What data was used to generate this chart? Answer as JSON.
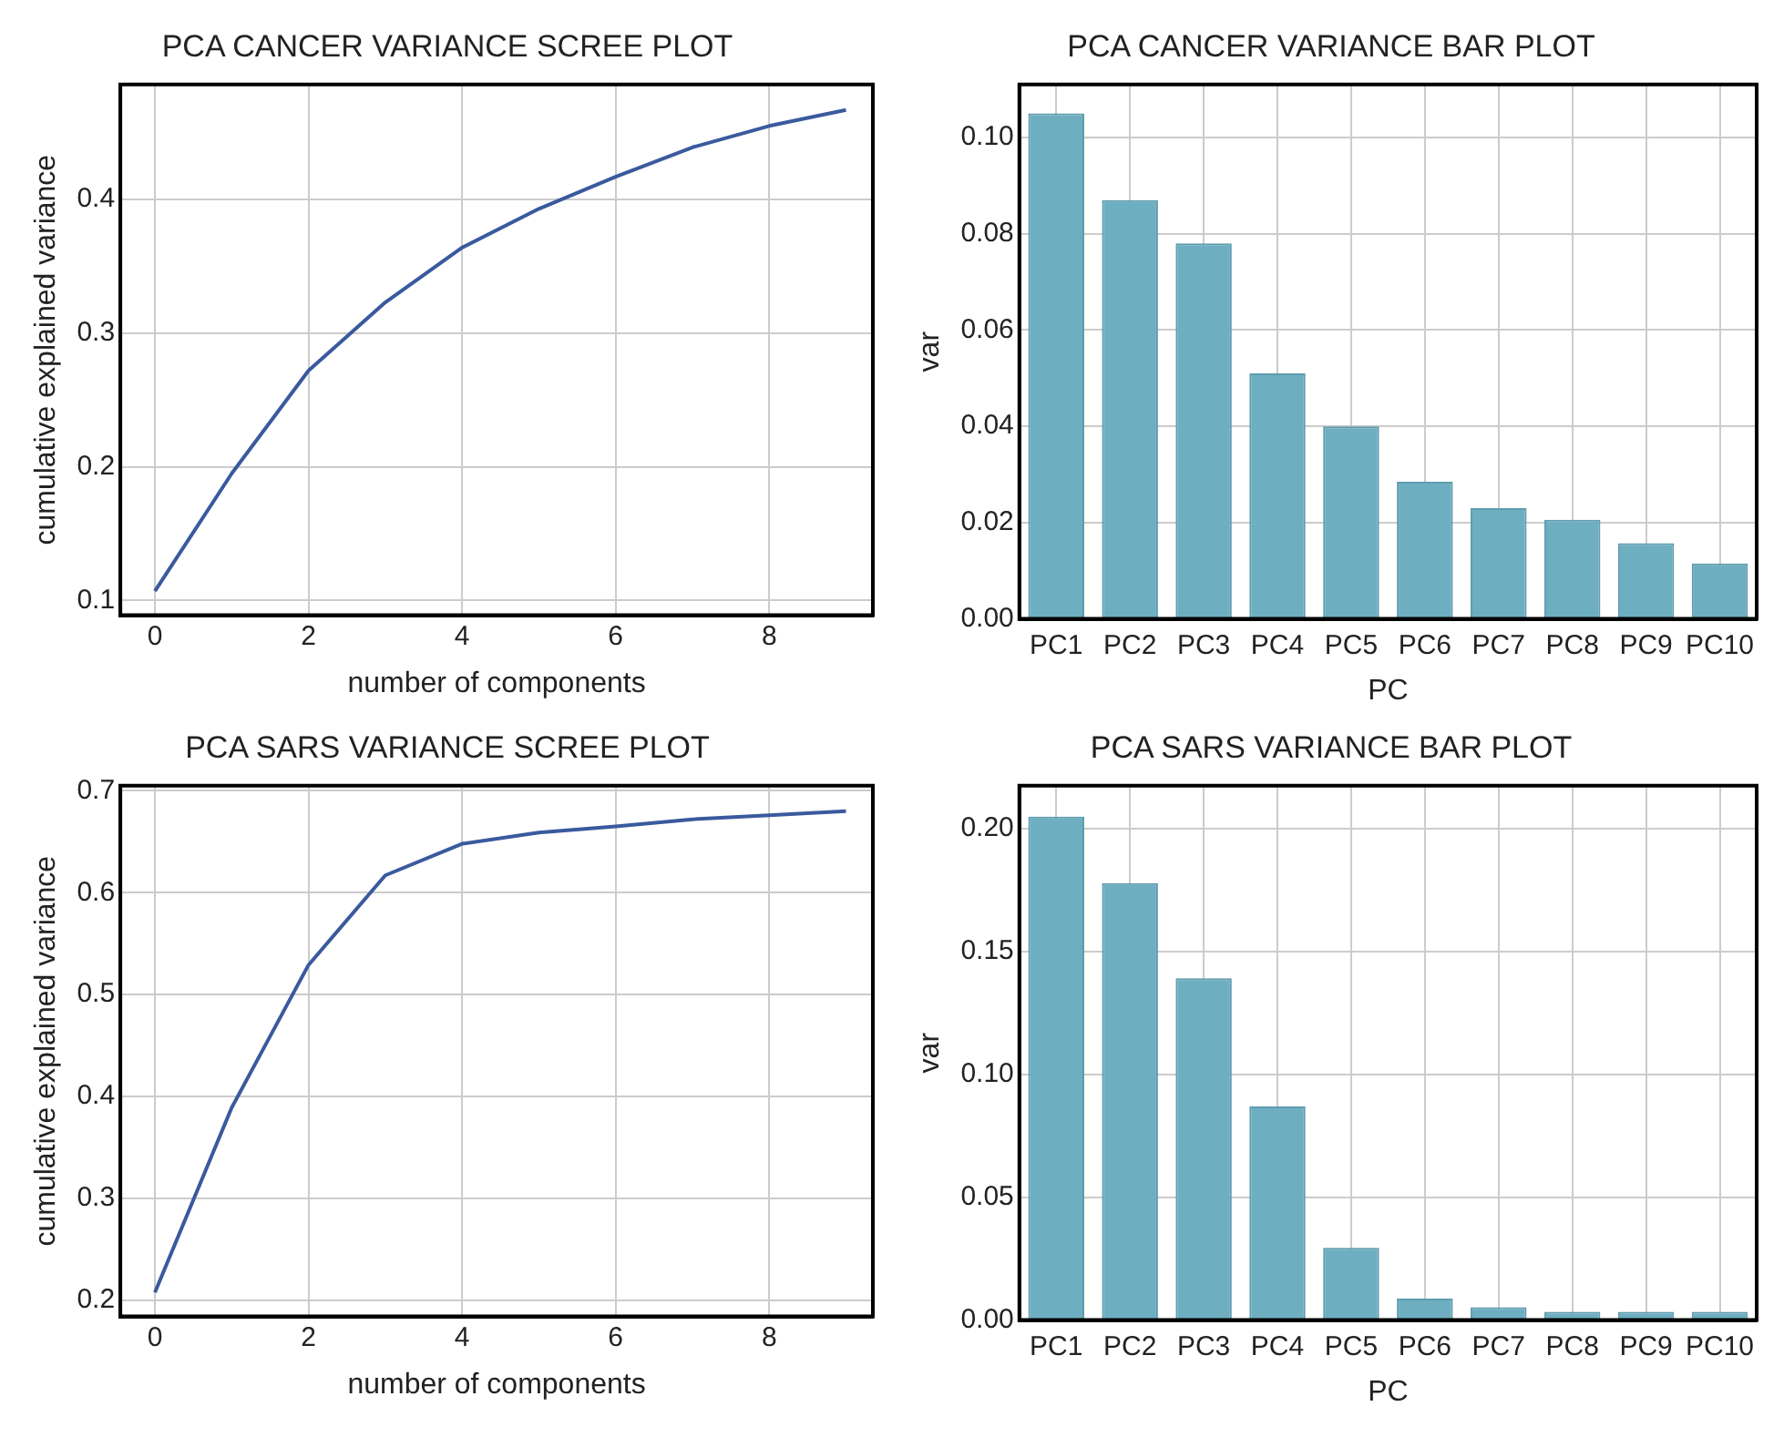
{
  "chart_data": [
    {
      "type": "line",
      "title": "PCA CANCER VARIANCE SCREE PLOT",
      "xlabel": "number of components",
      "ylabel": "cumulative explained variance",
      "x": [
        0,
        1,
        2,
        3,
        4,
        5,
        6,
        7,
        8,
        9
      ],
      "values": [
        0.107,
        0.195,
        0.272,
        0.323,
        0.364,
        0.393,
        0.417,
        0.439,
        0.455,
        0.467
      ],
      "color": "#3a5a9e",
      "xlim": [
        -0.45,
        9.35
      ],
      "ylim": [
        0.089,
        0.486
      ],
      "xticks": [
        0,
        2,
        4,
        6,
        8
      ],
      "yticks": [
        0.1,
        0.2,
        0.3,
        0.4
      ],
      "grid": true,
      "marker": "none",
      "line_style": "solid"
    },
    {
      "type": "bar",
      "title": "PCA CANCER VARIANCE BAR PLOT",
      "xlabel": "PC",
      "ylabel": "var",
      "categories": [
        "PC1",
        "PC2",
        "PC3",
        "PC4",
        "PC5",
        "PC6",
        "PC7",
        "PC8",
        "PC9",
        "PC10"
      ],
      "values": [
        0.105,
        0.087,
        0.078,
        0.051,
        0.04,
        0.0285,
        0.023,
        0.0206,
        0.0157,
        0.0115
      ],
      "color": "#6eaec1",
      "ylim": [
        0,
        0.111
      ],
      "yticks": [
        {
          "value": 0,
          "label": "0.00"
        },
        {
          "value": 0.02,
          "label": "0.02"
        },
        {
          "value": 0.04,
          "label": "0.04"
        },
        {
          "value": 0.06,
          "label": "0.06"
        },
        {
          "value": 0.08,
          "label": "0.08"
        },
        {
          "value": 0.1,
          "label": "0.10"
        }
      ],
      "grid": true
    },
    {
      "type": "line",
      "title": "PCA SARS VARIANCE SCREE PLOT",
      "xlabel": "number of components",
      "ylabel": "cumulative explained variance",
      "x": [
        0,
        1,
        2,
        3,
        4,
        5,
        6,
        7,
        8,
        9
      ],
      "values": [
        0.2075,
        0.389,
        0.529,
        0.617,
        0.648,
        0.659,
        0.665,
        0.672,
        0.676,
        0.68
      ],
      "color": "#3a5a9e",
      "xlim": [
        -0.45,
        9.35
      ],
      "ylim": [
        0.184,
        0.705
      ],
      "xticks": [
        0,
        2,
        4,
        6,
        8
      ],
      "yticks": [
        0.2,
        0.3,
        0.4,
        0.5,
        0.6,
        0.7
      ],
      "grid": true,
      "marker": "none",
      "line_style": "solid"
    },
    {
      "type": "bar",
      "title": "PCA SARS VARIANCE BAR PLOT",
      "xlabel": "PC",
      "ylabel": "var",
      "categories": [
        "PC1",
        "PC2",
        "PC3",
        "PC4",
        "PC5",
        "PC6",
        "PC7",
        "PC8",
        "PC9",
        "PC10"
      ],
      "values": [
        0.2047,
        0.1777,
        0.139,
        0.0869,
        0.0294,
        0.0087,
        0.0052,
        0.0034,
        0.0034,
        0.0034
      ],
      "color": "#6eaec1",
      "ylim": [
        0,
        0.2173
      ],
      "yticks": [
        {
          "value": 0,
          "label": "0.00"
        },
        {
          "value": 0.05,
          "label": "0.05"
        },
        {
          "value": 0.1,
          "label": "0.10"
        },
        {
          "value": 0.15,
          "label": "0.15"
        },
        {
          "value": 0.2,
          "label": "0.20"
        }
      ],
      "grid": true
    }
  ]
}
